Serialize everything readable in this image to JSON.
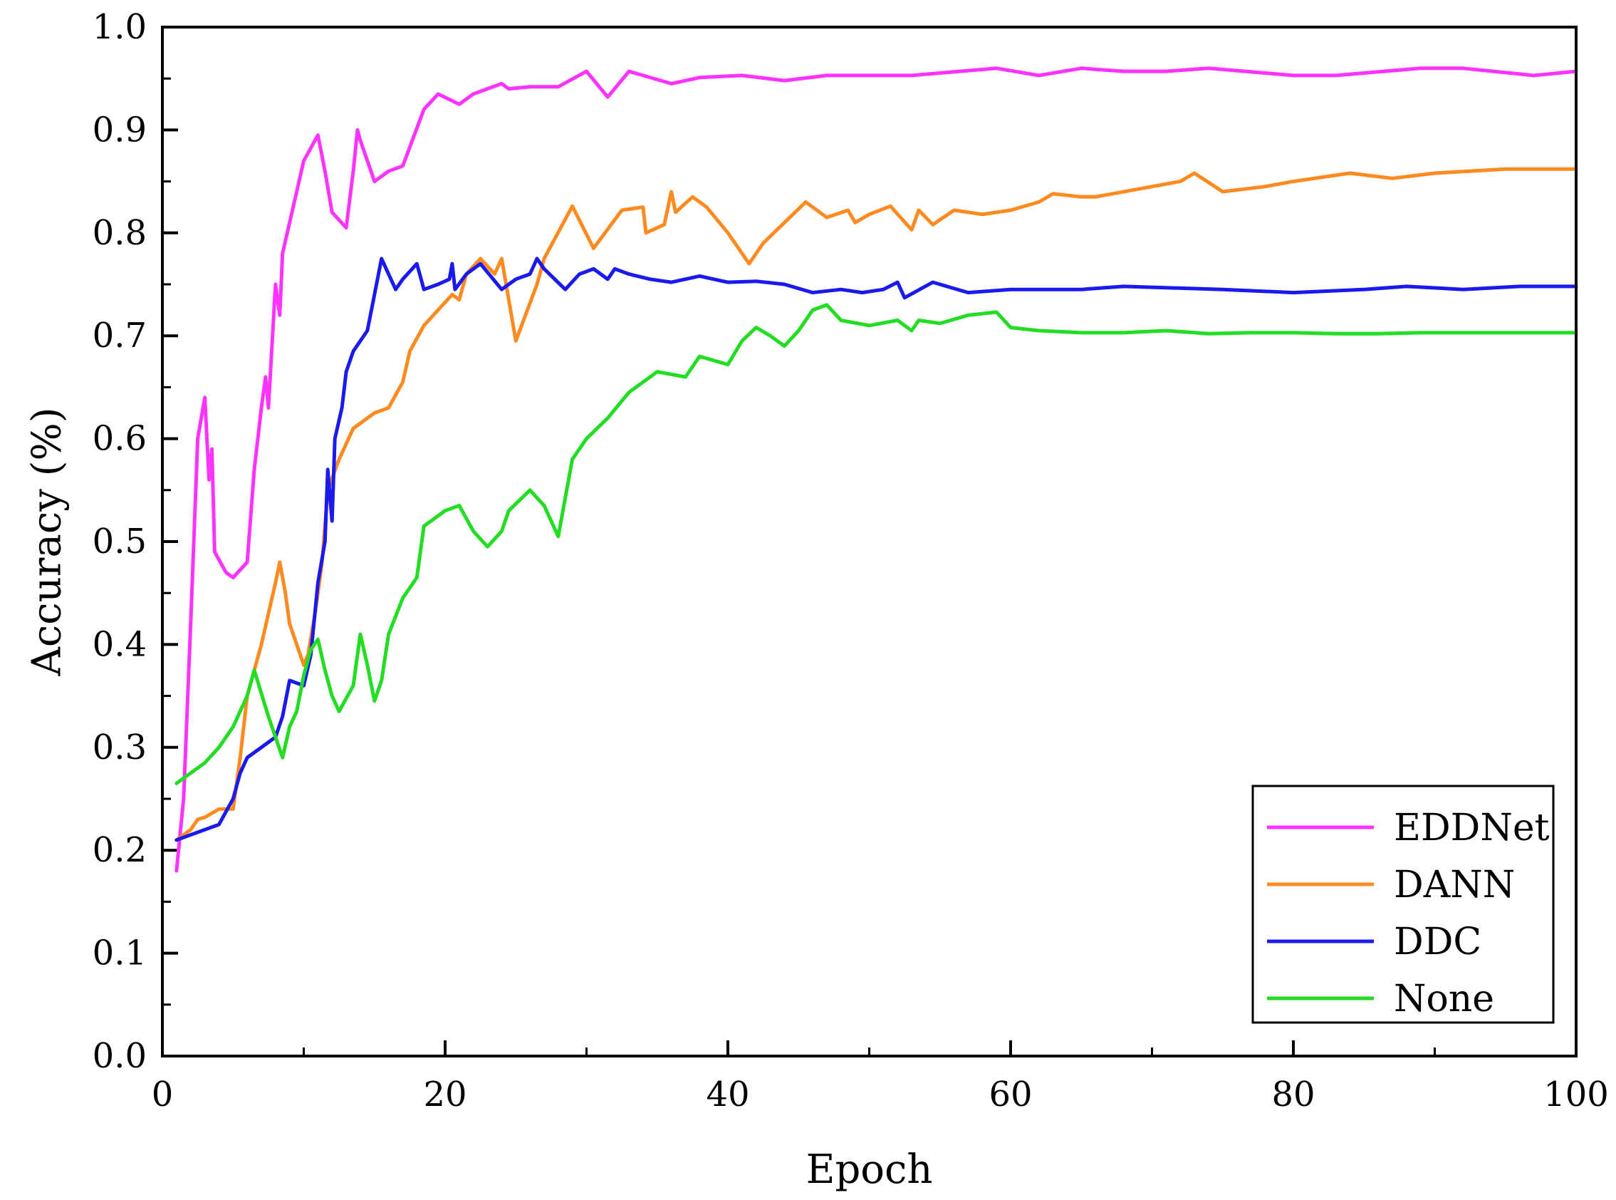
{
  "chart_data": {
    "type": "line",
    "title": "",
    "xlabel": "Epoch",
    "ylabel": "Accuracy (%)",
    "xlim": [
      0,
      100
    ],
    "ylim": [
      0.0,
      1.0
    ],
    "x_ticks": [
      "0",
      "20",
      "40",
      "60",
      "80",
      "100"
    ],
    "y_ticks": [
      "0.0",
      "0.1",
      "0.2",
      "0.3",
      "0.4",
      "0.5",
      "0.6",
      "0.7",
      "0.8",
      "0.9",
      "1.0"
    ],
    "grid": false,
    "legend_position": "bottom-right",
    "series": [
      {
        "name": "EDDNet",
        "color": "#ff33ff",
        "points": [
          [
            1,
            0.18
          ],
          [
            1.5,
            0.25
          ],
          [
            2,
            0.42
          ],
          [
            2.5,
            0.6
          ],
          [
            3,
            0.64
          ],
          [
            3.3,
            0.56
          ],
          [
            3.5,
            0.59
          ],
          [
            3.7,
            0.49
          ],
          [
            4.5,
            0.47
          ],
          [
            5,
            0.465
          ],
          [
            6,
            0.48
          ],
          [
            6.5,
            0.57
          ],
          [
            7,
            0.63
          ],
          [
            7.3,
            0.66
          ],
          [
            7.5,
            0.63
          ],
          [
            8,
            0.75
          ],
          [
            8.3,
            0.72
          ],
          [
            8.5,
            0.78
          ],
          [
            9,
            0.81
          ],
          [
            9.5,
            0.84
          ],
          [
            10,
            0.87
          ],
          [
            11,
            0.895
          ],
          [
            11.5,
            0.86
          ],
          [
            12,
            0.82
          ],
          [
            13,
            0.805
          ],
          [
            13.5,
            0.86
          ],
          [
            13.8,
            0.9
          ],
          [
            14,
            0.89
          ],
          [
            15,
            0.85
          ],
          [
            16,
            0.86
          ],
          [
            17,
            0.865
          ],
          [
            18.5,
            0.92
          ],
          [
            19.5,
            0.935
          ],
          [
            21,
            0.925
          ],
          [
            22,
            0.935
          ],
          [
            23,
            0.94
          ],
          [
            24,
            0.945
          ],
          [
            24.5,
            0.94
          ],
          [
            26,
            0.942
          ],
          [
            28,
            0.942
          ],
          [
            30,
            0.957
          ],
          [
            31.5,
            0.932
          ],
          [
            33,
            0.957
          ],
          [
            36,
            0.945
          ],
          [
            38,
            0.951
          ],
          [
            41,
            0.953
          ],
          [
            44,
            0.948
          ],
          [
            47,
            0.953
          ],
          [
            53,
            0.953
          ],
          [
            59,
            0.96
          ],
          [
            62,
            0.953
          ],
          [
            65,
            0.96
          ],
          [
            68,
            0.957
          ],
          [
            71,
            0.957
          ],
          [
            74,
            0.96
          ],
          [
            80,
            0.953
          ],
          [
            83,
            0.953
          ],
          [
            89,
            0.96
          ],
          [
            92,
            0.96
          ],
          [
            97,
            0.953
          ],
          [
            100,
            0.957
          ]
        ]
      },
      {
        "name": "DANN",
        "color": "#ff8a1f",
        "points": [
          [
            1,
            0.21
          ],
          [
            2,
            0.22
          ],
          [
            2.5,
            0.23
          ],
          [
            3,
            0.232
          ],
          [
            4,
            0.24
          ],
          [
            4.5,
            0.24
          ],
          [
            5,
            0.24
          ],
          [
            5.5,
            0.29
          ],
          [
            6,
            0.35
          ],
          [
            7,
            0.4
          ],
          [
            7.5,
            0.43
          ],
          [
            8,
            0.46
          ],
          [
            8.3,
            0.48
          ],
          [
            8.7,
            0.45
          ],
          [
            9,
            0.42
          ],
          [
            9.5,
            0.4
          ],
          [
            10,
            0.38
          ],
          [
            10.3,
            0.39
          ],
          [
            10.8,
            0.43
          ],
          [
            11.3,
            0.48
          ],
          [
            11.7,
            0.55
          ],
          [
            12.5,
            0.58
          ],
          [
            13.5,
            0.61
          ],
          [
            15,
            0.625
          ],
          [
            16,
            0.63
          ],
          [
            17,
            0.655
          ],
          [
            17.5,
            0.685
          ],
          [
            18.5,
            0.71
          ],
          [
            19.5,
            0.725
          ],
          [
            20.5,
            0.74
          ],
          [
            21,
            0.735
          ],
          [
            21.5,
            0.76
          ],
          [
            22.5,
            0.775
          ],
          [
            23.5,
            0.76
          ],
          [
            24,
            0.775
          ],
          [
            25,
            0.695
          ],
          [
            26.5,
            0.75
          ],
          [
            27,
            0.775
          ],
          [
            29,
            0.826
          ],
          [
            30.5,
            0.785
          ],
          [
            32.5,
            0.822
          ],
          [
            34,
            0.825
          ],
          [
            34.2,
            0.8
          ],
          [
            35.5,
            0.808
          ],
          [
            36,
            0.84
          ],
          [
            36.3,
            0.82
          ],
          [
            37.5,
            0.835
          ],
          [
            38.5,
            0.825
          ],
          [
            40,
            0.8
          ],
          [
            41.5,
            0.77
          ],
          [
            42.5,
            0.79
          ],
          [
            44,
            0.81
          ],
          [
            45.5,
            0.83
          ],
          [
            47,
            0.815
          ],
          [
            48.5,
            0.822
          ],
          [
            49,
            0.81
          ],
          [
            50,
            0.818
          ],
          [
            51.5,
            0.826
          ],
          [
            53,
            0.803
          ],
          [
            53.5,
            0.822
          ],
          [
            54.5,
            0.808
          ],
          [
            56,
            0.822
          ],
          [
            58,
            0.818
          ],
          [
            60,
            0.822
          ],
          [
            62,
            0.83
          ],
          [
            63,
            0.838
          ],
          [
            65,
            0.835
          ],
          [
            66,
            0.835
          ],
          [
            70,
            0.845
          ],
          [
            72,
            0.85
          ],
          [
            73,
            0.858
          ],
          [
            75,
            0.84
          ],
          [
            78,
            0.845
          ],
          [
            80,
            0.85
          ],
          [
            84,
            0.858
          ],
          [
            87,
            0.853
          ],
          [
            90,
            0.858
          ],
          [
            95,
            0.862
          ],
          [
            100,
            0.862
          ]
        ]
      },
      {
        "name": "DDC",
        "color": "#1a1aee",
        "points": [
          [
            1,
            0.21
          ],
          [
            3,
            0.22
          ],
          [
            4,
            0.225
          ],
          [
            5,
            0.25
          ],
          [
            5.5,
            0.275
          ],
          [
            6,
            0.29
          ],
          [
            7,
            0.3
          ],
          [
            8,
            0.31
          ],
          [
            8.5,
            0.33
          ],
          [
            9,
            0.365
          ],
          [
            10,
            0.36
          ],
          [
            10.5,
            0.39
          ],
          [
            11,
            0.46
          ],
          [
            11.5,
            0.5
          ],
          [
            11.7,
            0.57
          ],
          [
            12,
            0.52
          ],
          [
            12.2,
            0.6
          ],
          [
            12.7,
            0.63
          ],
          [
            13,
            0.665
          ],
          [
            13.5,
            0.685
          ],
          [
            14.5,
            0.705
          ],
          [
            15,
            0.74
          ],
          [
            15.5,
            0.775
          ],
          [
            16,
            0.76
          ],
          [
            16.5,
            0.745
          ],
          [
            17,
            0.755
          ],
          [
            18,
            0.77
          ],
          [
            18.5,
            0.745
          ],
          [
            19.5,
            0.75
          ],
          [
            20.3,
            0.755
          ],
          [
            20.5,
            0.77
          ],
          [
            20.7,
            0.745
          ],
          [
            21.5,
            0.76
          ],
          [
            22.5,
            0.77
          ],
          [
            24,
            0.745
          ],
          [
            25,
            0.755
          ],
          [
            26,
            0.76
          ],
          [
            26.5,
            0.775
          ],
          [
            27,
            0.765
          ],
          [
            28.5,
            0.745
          ],
          [
            29.5,
            0.76
          ],
          [
            30.5,
            0.765
          ],
          [
            31.5,
            0.755
          ],
          [
            32,
            0.765
          ],
          [
            33,
            0.76
          ],
          [
            34.5,
            0.755
          ],
          [
            36,
            0.752
          ],
          [
            38,
            0.758
          ],
          [
            40,
            0.752
          ],
          [
            42,
            0.753
          ],
          [
            44,
            0.75
          ],
          [
            46,
            0.742
          ],
          [
            48,
            0.745
          ],
          [
            49.5,
            0.742
          ],
          [
            51,
            0.745
          ],
          [
            52,
            0.752
          ],
          [
            52.5,
            0.737
          ],
          [
            54.5,
            0.752
          ],
          [
            57,
            0.742
          ],
          [
            60,
            0.745
          ],
          [
            65,
            0.745
          ],
          [
            68,
            0.748
          ],
          [
            75,
            0.745
          ],
          [
            80,
            0.742
          ],
          [
            85,
            0.745
          ],
          [
            88,
            0.748
          ],
          [
            92,
            0.745
          ],
          [
            96,
            0.748
          ],
          [
            100,
            0.748
          ]
        ]
      },
      {
        "name": "None",
        "color": "#22dd22",
        "points": [
          [
            1,
            0.265
          ],
          [
            2,
            0.275
          ],
          [
            3,
            0.285
          ],
          [
            4,
            0.3
          ],
          [
            5,
            0.32
          ],
          [
            6,
            0.35
          ],
          [
            6.5,
            0.375
          ],
          [
            7.5,
            0.33
          ],
          [
            8,
            0.31
          ],
          [
            8.5,
            0.29
          ],
          [
            9,
            0.32
          ],
          [
            9.5,
            0.335
          ],
          [
            10,
            0.37
          ],
          [
            10.5,
            0.395
          ],
          [
            11,
            0.405
          ],
          [
            11.5,
            0.375
          ],
          [
            12,
            0.35
          ],
          [
            12.5,
            0.335
          ],
          [
            13.5,
            0.36
          ],
          [
            14,
            0.41
          ],
          [
            14.5,
            0.38
          ],
          [
            15,
            0.345
          ],
          [
            15.5,
            0.365
          ],
          [
            16,
            0.41
          ],
          [
            17,
            0.445
          ],
          [
            18,
            0.465
          ],
          [
            18.5,
            0.515
          ],
          [
            19,
            0.52
          ],
          [
            20,
            0.53
          ],
          [
            21,
            0.535
          ],
          [
            22,
            0.51
          ],
          [
            23,
            0.495
          ],
          [
            24,
            0.51
          ],
          [
            24.5,
            0.53
          ],
          [
            26,
            0.55
          ],
          [
            27,
            0.535
          ],
          [
            28,
            0.505
          ],
          [
            29,
            0.58
          ],
          [
            30,
            0.6
          ],
          [
            31.5,
            0.62
          ],
          [
            33,
            0.645
          ],
          [
            35,
            0.665
          ],
          [
            37,
            0.66
          ],
          [
            38,
            0.68
          ],
          [
            40,
            0.672
          ],
          [
            41,
            0.695
          ],
          [
            42,
            0.708
          ],
          [
            43,
            0.7
          ],
          [
            44,
            0.69
          ],
          [
            45,
            0.705
          ],
          [
            46,
            0.725
          ],
          [
            47,
            0.73
          ],
          [
            48,
            0.715
          ],
          [
            50,
            0.71
          ],
          [
            52,
            0.715
          ],
          [
            53,
            0.705
          ],
          [
            53.5,
            0.715
          ],
          [
            55,
            0.712
          ],
          [
            57,
            0.72
          ],
          [
            59,
            0.723
          ],
          [
            60,
            0.708
          ],
          [
            62,
            0.705
          ],
          [
            65,
            0.703
          ],
          [
            68,
            0.703
          ],
          [
            71,
            0.705
          ],
          [
            74,
            0.702
          ],
          [
            77,
            0.703
          ],
          [
            80,
            0.703
          ],
          [
            83,
            0.702
          ],
          [
            86,
            0.702
          ],
          [
            89,
            0.703
          ],
          [
            92,
            0.703
          ],
          [
            95,
            0.703
          ],
          [
            98,
            0.703
          ],
          [
            100,
            0.703
          ]
        ]
      }
    ]
  }
}
